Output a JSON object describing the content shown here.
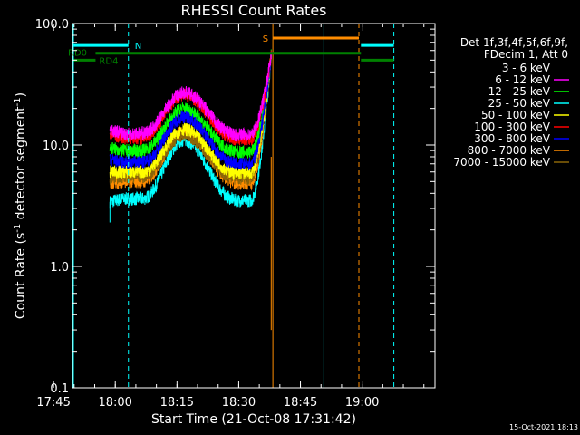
{
  "chart_data": {
    "type": "line",
    "title": "RHESSI Count Rates",
    "xlabel": "Start Time (21-Oct-08 17:31:42)",
    "ylabel_main": "Count Rate (s",
    "ylabel_sup1": "-1",
    "ylabel_mid": " detector segment",
    "ylabel_sup2": "-1",
    "ylabel_end": ")",
    "y_scale": "log",
    "ylim": [
      0.1,
      100
    ],
    "x_range_minutes": [
      17.9,
      106
    ],
    "x_ticks": [
      {
        "label": "17:45",
        "minute": 13.3
      },
      {
        "label": "18:00",
        "minute": 28.3
      },
      {
        "label": "18:15",
        "minute": 43.3
      },
      {
        "label": "18:30",
        "minute": 58.3
      },
      {
        "label": "18:45",
        "minute": 73.3
      },
      {
        "label": "19:00",
        "minute": 88.3
      }
    ],
    "y_ticks": [
      {
        "label": "100.0",
        "value": 100
      },
      {
        "label": "10.0",
        "value": 10
      },
      {
        "label": "1.0",
        "value": 1
      },
      {
        "label": "0.1",
        "value": 0.1
      }
    ],
    "legend_header": [
      "Det 1f,3f,4f,5f,6f,9f,",
      "FDecim 1, Att 0"
    ],
    "legend_placement": "right",
    "timestamp": "15-Oct-2021 18:13",
    "series": [
      {
        "name": "3 - 6 keV",
        "color": "#000000",
        "base": 5.2,
        "peak": 12.5,
        "start_val": 4.9
      },
      {
        "name": "6 - 12 keV",
        "color": "#ff00ff",
        "base": 12.5,
        "peak": 27,
        "start_val": 13.5
      },
      {
        "name": "12 - 25 keV",
        "color": "#00ff00",
        "base": 9.0,
        "peak": 20,
        "start_val": 9.5
      },
      {
        "name": "25 - 50 keV",
        "color": "#00ffff",
        "base": 3.6,
        "peak": 11,
        "start_val": 3.4
      },
      {
        "name": "50 - 100 keV",
        "color": "#ffff00",
        "base": 6.0,
        "peak": 13.5,
        "start_val": 6.0
      },
      {
        "name": "100 - 300 keV",
        "color": "#ff0000",
        "base": 11.5,
        "peak": 26,
        "start_val": 12.5
      },
      {
        "name": "300 - 800 keV",
        "color": "#0000ff",
        "base": 7.2,
        "peak": 17,
        "start_val": 7.5
      },
      {
        "name": "800 - 7000 keV",
        "color": "#ff8c00",
        "base": 5.0,
        "peak": 13,
        "start_val": 4.8
      },
      {
        "name": "7000 - 15000 keV",
        "color": "#8b6508",
        "base": 5.5,
        "peak": 12,
        "start_val": 5.3
      }
    ],
    "time_profile": {
      "data_start_minute": 27.0,
      "rise_start_minute": 35.0,
      "peak_minute": 45.0,
      "fall_end_minute": 57.0,
      "spike_start_minute": 61.5,
      "data_end_minute": 66.2,
      "spike_top_value": 55
    },
    "flags": {
      "N": {
        "label": "N",
        "color": "#00ffff",
        "value": 66,
        "segments": [
          [
            17.9,
            31.5
          ],
          [
            88.0,
            96.0
          ]
        ],
        "dashed": [
          31.5,
          96.0
        ],
        "solid": [
          79.0
        ]
      },
      "S": {
        "label": "S",
        "color": "#ff8c00",
        "value": 76,
        "segments": [
          [
            66.6,
            87.5
          ]
        ],
        "dashed": [
          87.5
        ],
        "solid": [
          66.6
        ]
      },
      "RD0": {
        "label": "RD0",
        "color": "#008000",
        "value": 57,
        "segments": [
          [
            23.5,
            88.0
          ]
        ],
        "dashed": [],
        "solid": []
      },
      "RD4": {
        "label": "RD4",
        "color": "#008000",
        "value": 50,
        "segments": [
          [
            17.9,
            23.5
          ],
          [
            88.0,
            96.0
          ]
        ],
        "dashed": [],
        "solid": []
      }
    }
  }
}
